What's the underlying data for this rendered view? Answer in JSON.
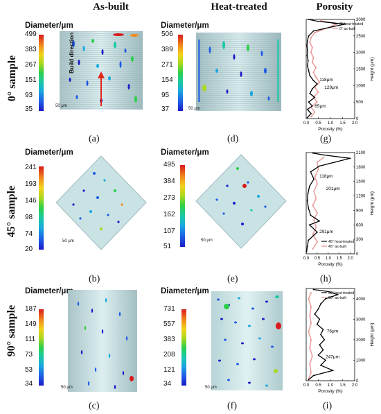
{
  "headers": {
    "as_built": "As-built",
    "heat_treated": "Heat-treated",
    "porosity": "Porosity"
  },
  "rows": [
    "0° sample",
    "45° sample",
    "90° sample"
  ],
  "colorbar_title": "Diameter/μm",
  "scale_label": "50 μm",
  "build_direction": "Build direction",
  "colorbar_ticks": {
    "a": [
      "499",
      "383",
      "267",
      "151",
      "93",
      "35"
    ],
    "d": [
      "506",
      "389",
      "271",
      "154",
      "95",
      "37"
    ],
    "b": [
      "241",
      "193",
      "146",
      "98",
      "74",
      "20"
    ],
    "e": [
      "495",
      "384",
      "273",
      "162",
      "107",
      "51"
    ],
    "c": [
      "187",
      "149",
      "111",
      "73",
      "53",
      "34"
    ],
    "f": [
      "731",
      "557",
      "383",
      "208",
      "121",
      "34"
    ]
  },
  "captions": [
    "(a)",
    "(b)",
    "(c)",
    "(d)",
    "(e)",
    "(f)",
    "(g)",
    "(h)",
    "(i)"
  ],
  "chart_data": [
    {
      "type": "line",
      "panel": "g",
      "xlabel": "Porosity (%)",
      "ylabel": "Height (μm)",
      "xlim": [
        0,
        2.0
      ],
      "ylim": [
        0,
        3000
      ],
      "xticks": [
        "0.0",
        "0.5",
        "1.0",
        "1.5",
        "2.0"
      ],
      "yticks": [
        "0",
        "500",
        "1000",
        "1500",
        "2000",
        "2500",
        "3000"
      ],
      "legend": [
        "0° heat-treated",
        "0° as-built"
      ],
      "annotations": [
        {
          "text": "118μm",
          "x": 0.55,
          "y": 1130
        },
        {
          "text": "129μm",
          "x": 0.75,
          "y": 900
        },
        {
          "text": "65μm",
          "x": 0.35,
          "y": 340
        }
      ],
      "series": [
        {
          "name": "0° heat-treated",
          "color": "#000000",
          "points": [
            [
              0.05,
              30
            ],
            [
              0.2,
              150
            ],
            [
              0.05,
              280
            ],
            [
              0.25,
              380
            ],
            [
              0.1,
              500
            ],
            [
              0.35,
              640
            ],
            [
              0.15,
              760
            ],
            [
              0.25,
              900
            ],
            [
              0.45,
              1050
            ],
            [
              0.3,
              1150
            ],
            [
              0.15,
              1300
            ],
            [
              0.1,
              1450
            ],
            [
              0.05,
              1600
            ],
            [
              0.08,
              1750
            ],
            [
              0.04,
              1900
            ],
            [
              0.06,
              2050
            ],
            [
              0.03,
              2200
            ],
            [
              0.05,
              2350
            ],
            [
              0.1,
              2500
            ],
            [
              0.3,
              2650
            ],
            [
              1.1,
              2780
            ],
            [
              1.6,
              2860
            ],
            [
              0.5,
              2940
            ],
            [
              0.1,
              3000
            ]
          ]
        },
        {
          "name": "0° as-built",
          "color": "#e88a8a",
          "points": [
            [
              0.2,
              50
            ],
            [
              0.35,
              200
            ],
            [
              0.2,
              350
            ],
            [
              0.45,
              500
            ],
            [
              0.3,
              650
            ],
            [
              0.5,
              800
            ],
            [
              0.35,
              950
            ],
            [
              0.55,
              1100
            ],
            [
              0.4,
              1250
            ],
            [
              0.3,
              1400
            ],
            [
              0.4,
              1550
            ],
            [
              0.25,
              1700
            ],
            [
              0.3,
              1850
            ],
            [
              0.2,
              2000
            ],
            [
              0.25,
              2150
            ],
            [
              0.15,
              2300
            ],
            [
              0.2,
              2450
            ],
            [
              0.35,
              2600
            ],
            [
              0.9,
              2750
            ],
            [
              1.3,
              2870
            ],
            [
              0.6,
              2960
            ]
          ]
        }
      ]
    },
    {
      "type": "line",
      "panel": "h",
      "xlabel": "Porosity (%)",
      "ylabel": "Height (μm)",
      "xlim": [
        0,
        2.2
      ],
      "ylim": [
        0,
        2100
      ],
      "xticks": [
        "0.0",
        "0.5",
        "1.0",
        "1.5",
        "2.0"
      ],
      "yticks": [
        "0",
        "300",
        "600",
        "900",
        "1200",
        "1500",
        "1800",
        "2100"
      ],
      "legend": [
        "45° heat-treated",
        "45° as-built"
      ],
      "annotations": [
        {
          "text": "118μm",
          "x": 0.6,
          "y": 1580
        },
        {
          "text": "201μm",
          "x": 0.9,
          "y": 1320
        },
        {
          "text": "291μm",
          "x": 0.6,
          "y": 430
        }
      ],
      "series": [
        {
          "name": "45° heat-treated",
          "color": "#000000",
          "points": [
            [
              0.02,
              40
            ],
            [
              0.05,
              150
            ],
            [
              0.1,
              280
            ],
            [
              0.5,
              450
            ],
            [
              0.15,
              600
            ],
            [
              0.6,
              680
            ],
            [
              0.2,
              800
            ],
            [
              0.1,
              950
            ],
            [
              0.05,
              1100
            ],
            [
              0.08,
              1250
            ],
            [
              0.15,
              1400
            ],
            [
              0.35,
              1550
            ],
            [
              0.2,
              1700
            ],
            [
              0.6,
              1820
            ],
            [
              1.3,
              1900
            ],
            [
              2.0,
              1980
            ],
            [
              0.8,
              2050
            ],
            [
              0.3,
              2090
            ]
          ]
        },
        {
          "name": "45° as-built",
          "color": "#e88a8a",
          "points": [
            [
              0.3,
              100
            ],
            [
              0.5,
              250
            ],
            [
              0.3,
              400
            ],
            [
              0.45,
              550
            ],
            [
              0.35,
              700
            ],
            [
              0.5,
              850
            ],
            [
              0.3,
              1000
            ],
            [
              0.45,
              1150
            ],
            [
              0.35,
              1300
            ],
            [
              0.5,
              1450
            ],
            [
              0.4,
              1600
            ],
            [
              0.55,
              1750
            ],
            [
              0.5,
              1900
            ],
            [
              0.8,
              2000
            ]
          ]
        }
      ]
    },
    {
      "type": "line",
      "panel": "i",
      "xlabel": "Porosity (%)",
      "ylabel": "Height (μm)",
      "xlim": [
        0,
        2.0
      ],
      "ylim": [
        0,
        4500
      ],
      "xticks": [
        "0.0",
        "0.5",
        "1.0",
        "1.5",
        "2.0"
      ],
      "yticks": [
        "0",
        "1000",
        "2000",
        "3000",
        "4000"
      ],
      "legend": [
        "90° heat-treated",
        "90° as-built"
      ],
      "annotations": [
        {
          "text": "76μm",
          "x": 0.85,
          "y": 2350
        },
        {
          "text": "247μm",
          "x": 0.8,
          "y": 1100
        }
      ],
      "series": [
        {
          "name": "90° heat-treated",
          "color": "#000000",
          "points": [
            [
              0.1,
              50
            ],
            [
              0.3,
              250
            ],
            [
              1.1,
              500
            ],
            [
              0.6,
              750
            ],
            [
              0.8,
              1000
            ],
            [
              0.5,
              1250
            ],
            [
              0.7,
              1500
            ],
            [
              0.55,
              1750
            ],
            [
              0.75,
              2000
            ],
            [
              0.6,
              2250
            ],
            [
              0.7,
              2500
            ],
            [
              0.45,
              2750
            ],
            [
              0.55,
              3000
            ],
            [
              0.35,
              3250
            ],
            [
              0.5,
              3500
            ],
            [
              0.6,
              3750
            ],
            [
              0.8,
              4000
            ],
            [
              1.3,
              4200
            ],
            [
              0.9,
              4350
            ],
            [
              0.3,
              4450
            ]
          ]
        },
        {
          "name": "90° as-built",
          "color": "#e88a8a",
          "points": [
            [
              0.1,
              100
            ],
            [
              0.2,
              400
            ],
            [
              0.15,
              800
            ],
            [
              0.25,
              1200
            ],
            [
              0.15,
              1600
            ],
            [
              0.2,
              2000
            ],
            [
              0.1,
              2400
            ],
            [
              0.2,
              2800
            ],
            [
              0.15,
              3200
            ],
            [
              0.2,
              3600
            ],
            [
              0.1,
              4000
            ],
            [
              0.2,
              4300
            ]
          ]
        }
      ]
    }
  ]
}
